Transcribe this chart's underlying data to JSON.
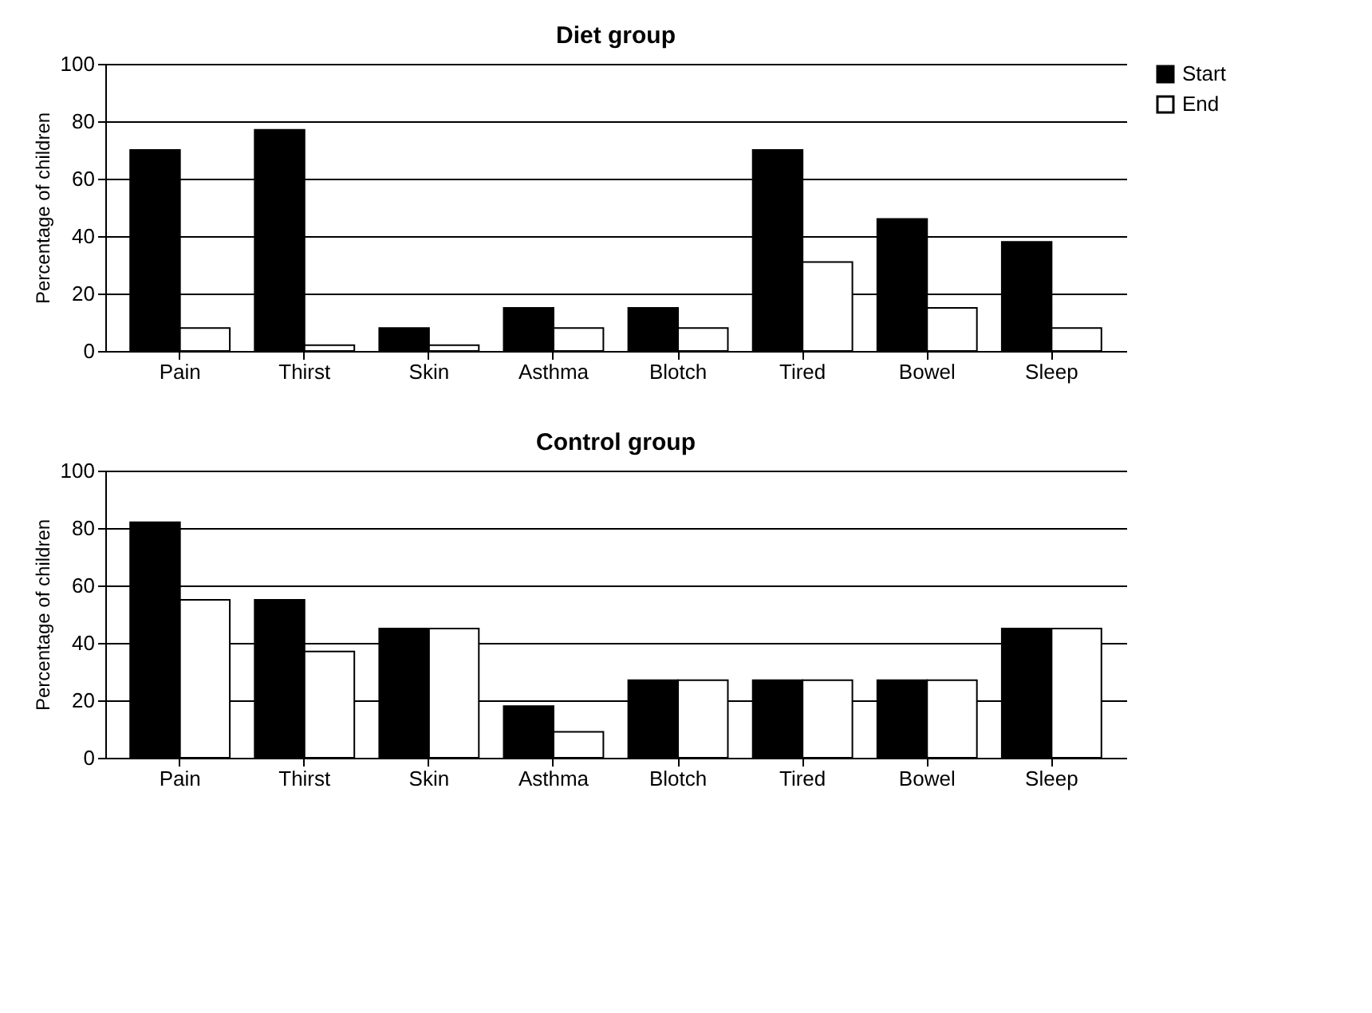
{
  "chart_data": [
    {
      "type": "bar",
      "title": "Diet group",
      "ylabel": "Percentage of children",
      "categories": [
        "Pain",
        "Thirst",
        "Skin",
        "Asthma",
        "Blotch",
        "Tired",
        "Bowel",
        "Sleep"
      ],
      "series": [
        {
          "name": "Start",
          "color": "#000000",
          "values": [
            70,
            77,
            8,
            15,
            15,
            70,
            46,
            38
          ]
        },
        {
          "name": "End",
          "color": "#ffffff",
          "values": [
            8,
            2,
            2,
            8,
            8,
            31,
            15,
            8
          ]
        }
      ],
      "ylim": [
        0,
        100
      ],
      "yticks": [
        0,
        20,
        40,
        60,
        80,
        100
      ],
      "grid": "y",
      "legend": "right"
    },
    {
      "type": "bar",
      "title": "Control group",
      "ylabel": "Percentage of children",
      "categories": [
        "Pain",
        "Thirst",
        "Skin",
        "Asthma",
        "Blotch",
        "Tired",
        "Bowel",
        "Sleep"
      ],
      "series": [
        {
          "name": "Start",
          "color": "#000000",
          "values": [
            82,
            55,
            45,
            18,
            27,
            27,
            27,
            45
          ]
        },
        {
          "name": "End",
          "color": "#ffffff",
          "values": [
            55,
            37,
            45,
            9,
            27,
            27,
            27,
            45
          ]
        }
      ],
      "ylim": [
        0,
        100
      ],
      "yticks": [
        0,
        20,
        40,
        60,
        80,
        100
      ],
      "grid": "y",
      "legend": "right"
    }
  ]
}
